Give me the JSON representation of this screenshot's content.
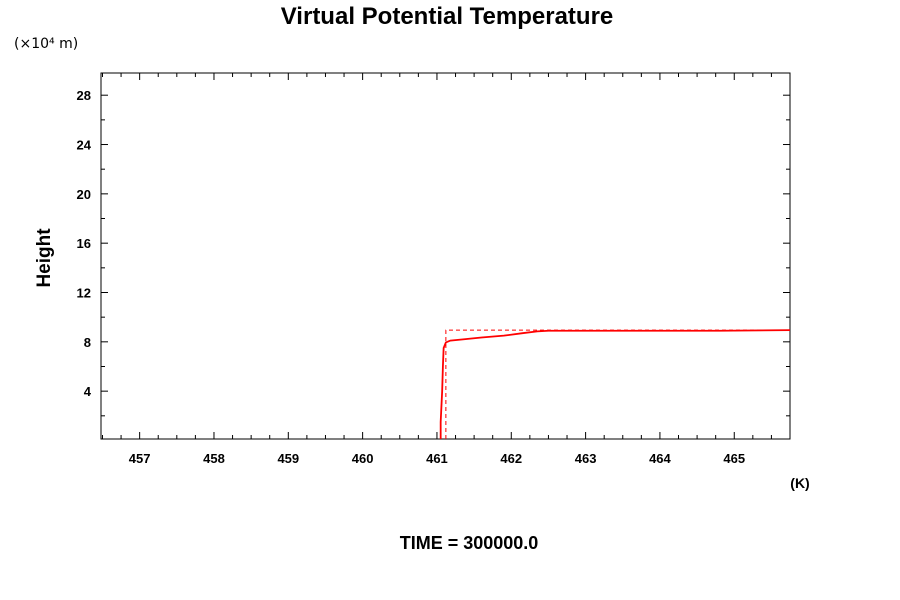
{
  "chart_data": {
    "type": "line",
    "title": "Virtual Potential Temperature",
    "ylabel": "Height",
    "xunit_label": "(K)",
    "yscale_label": "(×10⁴ m)",
    "xlim": [
      456.48,
      465.75
    ],
    "ylim": [
      0.12,
      29.8
    ],
    "x_ticks": [
      457,
      458,
      459,
      460,
      461,
      462,
      463,
      464,
      465
    ],
    "y_ticks": [
      4,
      8,
      12,
      16,
      20,
      24,
      28
    ],
    "x_tick_labels": [
      "457",
      "458",
      "459",
      "460",
      "461",
      "462",
      "463",
      "464",
      "465"
    ],
    "y_tick_labels": [
      "4",
      "8",
      "12",
      "16",
      "20",
      "24",
      "28"
    ],
    "grid": false,
    "series": [
      {
        "style": "solid",
        "color": "#ff0000",
        "x": [
          461.05,
          461.05,
          461.07,
          461.08,
          461.09,
          461.12,
          461.18,
          461.35,
          461.6,
          461.9,
          462.15,
          462.35,
          462.5,
          463.5,
          464.8,
          465.75
        ],
        "y": [
          0.12,
          1.5,
          4.0,
          6.0,
          7.5,
          7.95,
          8.1,
          8.2,
          8.35,
          8.5,
          8.7,
          8.85,
          8.9,
          8.9,
          8.9,
          8.95
        ]
      },
      {
        "style": "dashed",
        "color": "#ff0000",
        "x": [
          461.12,
          461.12,
          465.75
        ],
        "y": [
          0.12,
          8.95,
          8.95
        ]
      }
    ]
  },
  "footer": {
    "time_label": "TIME = 300000.0"
  }
}
